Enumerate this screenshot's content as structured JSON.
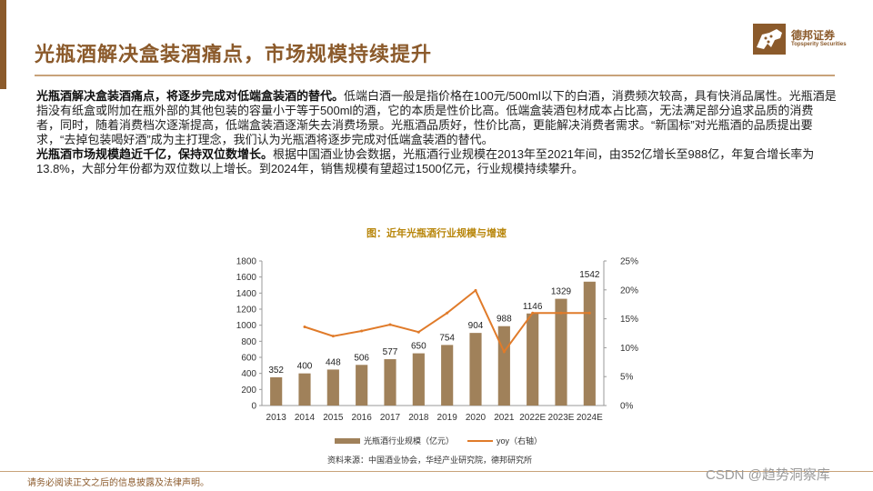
{
  "header": {
    "title": "光瓶酒解决盒装酒痛点，市场规模持续提升",
    "logo_cn": "德邦证券",
    "logo_en": "Topsperity Securities"
  },
  "body": {
    "p1_bold": "光瓶酒解决盒装酒痛点，将逐步完成对低端盒装酒的替代。",
    "p1_text": "低端白酒一般是指价格在100元/500ml以下的白酒，消费频次较高，具有快消品属性。光瓶酒是指没有纸盒或附加在瓶外部的其他包装的容量小于等于500ml的酒，它的本质是性价比高。低端盒装酒包材成本占比高，无法满足部分追求品质的消费者，同时，随着消费档次逐渐提高，低端盒装酒逐渐失去消费场景。光瓶酒品质好，性价比高，更能解决消费者需求。“新国标”对光瓶酒的品质提出要求，“去掉包装喝好酒”成为主打理念，我们认为光瓶酒将逐步完成对低端盒装酒的替代。",
    "p2_bold": "光瓶酒市场规模趋近千亿，保持双位数增长。",
    "p2_text": "根据中国酒业协会数据，光瓶酒行业规模在2013年至2021年间，由352亿增长至988亿，年复合增长率为13.8%，大部分年份都为双位数以上增长。到2024年，销售规模有望超过1500亿元，行业规模持续攀升。"
  },
  "chart_data": {
    "type": "bar+line",
    "title": "图：近年光瓶酒行业规模与增速",
    "categories": [
      "2013",
      "2014",
      "2015",
      "2016",
      "2017",
      "2018",
      "2019",
      "2020",
      "2021",
      "2022E",
      "2023E",
      "2024E"
    ],
    "series": [
      {
        "name": "光瓶酒行业规模（亿元）",
        "type": "bar",
        "axis": "left",
        "values": [
          352,
          400,
          448,
          506,
          577,
          650,
          754,
          904,
          988,
          1146,
          1329,
          1542
        ]
      },
      {
        "name": "yoy（右轴）",
        "type": "line",
        "axis": "right",
        "values": [
          null,
          13.6,
          12.0,
          12.9,
          14.0,
          12.7,
          16.0,
          19.9,
          9.3,
          16.0,
          16.0,
          16.0
        ]
      }
    ],
    "left_axis": {
      "min": 0,
      "max": 1800,
      "step": 200,
      "ticks": [
        "0",
        "200",
        "400",
        "600",
        "800",
        "1000",
        "1200",
        "1400",
        "1600",
        "1800"
      ]
    },
    "right_axis": {
      "min": 0,
      "max": 25,
      "step": 5,
      "ticks": [
        "0%",
        "5%",
        "10%",
        "15%",
        "20%",
        "25%"
      ]
    },
    "bar_color": "#a0815a",
    "line_color": "#e07b2a",
    "legend": [
      {
        "label": "光瓶酒行业规模（亿元）",
        "kind": "bar"
      },
      {
        "label": "yoy（右轴）",
        "kind": "line"
      }
    ],
    "source": "资料来源：中国酒业协会，华经产业研究院，德邦研究所"
  },
  "footer": {
    "disclaimer": "请务必阅读正文之后的信息披露及法律声明。",
    "watermark": "CSDN @趋势洞察库"
  },
  "colors": {
    "brand": "#8b5a2b",
    "accent": "#c8a27a"
  }
}
